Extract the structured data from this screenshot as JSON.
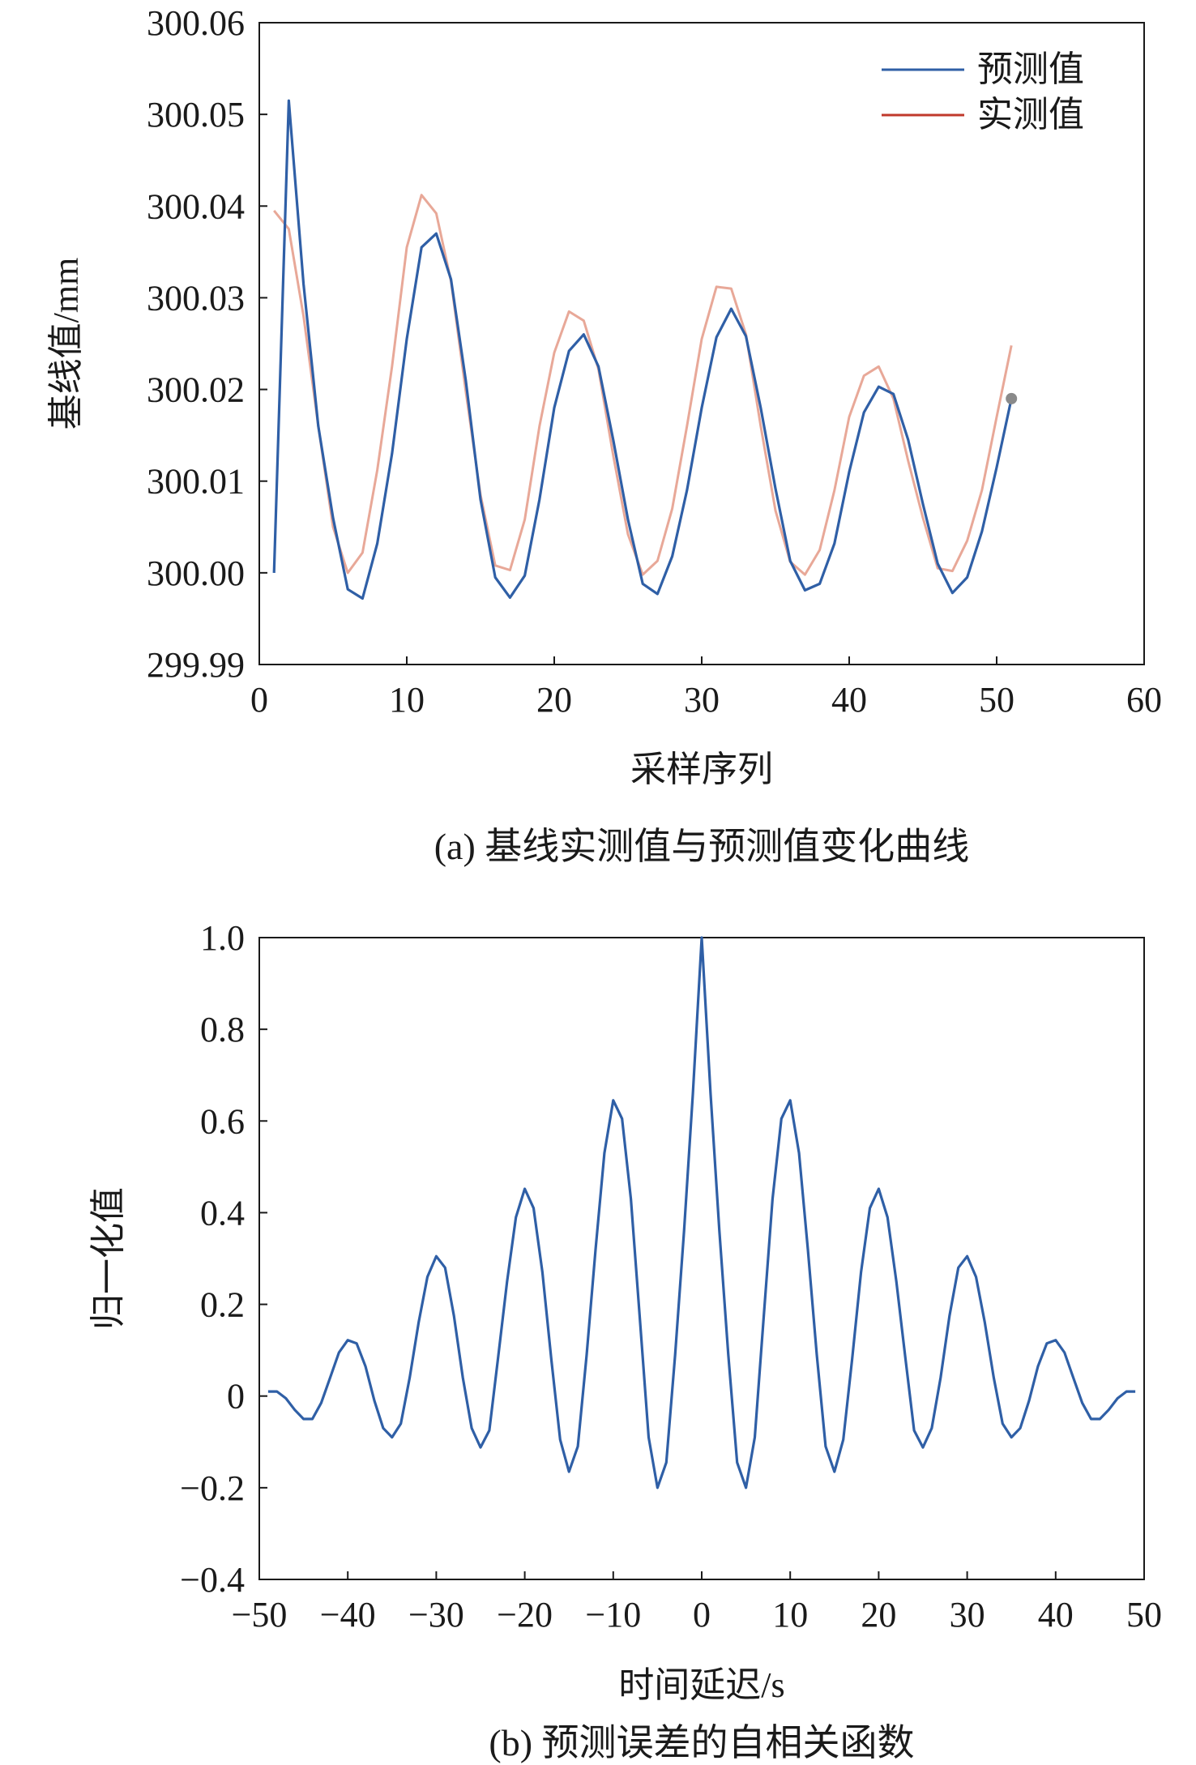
{
  "chart_data": [
    {
      "type": "line",
      "caption": "(a) 基线实测值与预测值变化曲线",
      "xlabel": "采样序列",
      "ylabel": "基线值/mm",
      "xlim": [
        0,
        60
      ],
      "ylim": [
        299.99,
        300.06
      ],
      "xticks": [
        0,
        10,
        20,
        30,
        40,
        50,
        60
      ],
      "yticks": [
        "299.99",
        "300.00",
        "300.01",
        "300.02",
        "300.03",
        "300.04",
        "300.05",
        "300.06"
      ],
      "grid": false,
      "legend": "top-right",
      "x": [
        1,
        2,
        3,
        4,
        5,
        6,
        7,
        8,
        9,
        10,
        11,
        12,
        13,
        14,
        15,
        16,
        17,
        18,
        19,
        20,
        21,
        22,
        23,
        24,
        25,
        26,
        27,
        28,
        29,
        30,
        31,
        32,
        33,
        34,
        35,
        36,
        37,
        38,
        39,
        40,
        41,
        42,
        43,
        44,
        45,
        46,
        47,
        48,
        49,
        50,
        51
      ],
      "series": [
        {
          "name": "预测值",
          "color": "#2f5fa6",
          "values": [
            300.0,
            300.0515,
            300.0315,
            300.016,
            300.006,
            299.9982,
            299.9972,
            300.0032,
            300.013,
            300.0255,
            300.0355,
            300.037,
            300.032,
            300.021,
            300.008,
            299.9995,
            299.9973,
            299.9997,
            300.008,
            300.018,
            300.0242,
            300.026,
            300.0225,
            300.0145,
            300.0058,
            299.9988,
            299.9977,
            300.0018,
            300.009,
            300.018,
            300.0257,
            300.0288,
            300.0258,
            300.018,
            300.0092,
            300.0013,
            299.9981,
            299.9988,
            300.0032,
            300.011,
            300.0175,
            300.0203,
            300.0195,
            300.0145,
            300.0075,
            300.001,
            299.9978,
            299.9995,
            300.0045,
            300.0115,
            300.019
          ]
        },
        {
          "name": "实测值",
          "color": "#e8a898",
          "values": [
            300.0395,
            300.0375,
            300.028,
            300.016,
            300.005,
            300.0,
            300.0022,
            300.0112,
            300.0225,
            300.0355,
            300.0412,
            300.0392,
            300.0318,
            300.0198,
            300.0085,
            300.0008,
            300.0003,
            300.0058,
            300.016,
            300.024,
            300.0285,
            300.0275,
            300.0222,
            300.0128,
            300.0042,
            299.9998,
            300.0013,
            300.007,
            300.016,
            300.0255,
            300.0312,
            300.031,
            300.026,
            300.016,
            300.0068,
            300.0012,
            299.9998,
            300.0025,
            300.009,
            300.017,
            300.0215,
            300.0225,
            300.019,
            300.0122,
            300.006,
            300.0005,
            300.0002,
            300.0035,
            300.009,
            300.017,
            300.0248
          ]
        }
      ]
    },
    {
      "type": "line",
      "caption": "(b) 预测误差的自相关函数",
      "xlabel": "时间延迟/s",
      "ylabel": "归一化值",
      "xlim": [
        -50,
        50
      ],
      "ylim": [
        -0.4,
        1.0
      ],
      "xticks": [
        "−50",
        "−40",
        "−30",
        "−20",
        "−10",
        "0",
        "10",
        "20",
        "30",
        "40",
        "50"
      ],
      "yticks": [
        "−0.4",
        "−0.2",
        "0",
        "0.2",
        "0.4",
        "0.6",
        "0.8",
        "1.0"
      ],
      "grid": false,
      "legend": "none",
      "x": [
        -49,
        -48,
        -47,
        -46,
        -45,
        -44,
        -43,
        -42,
        -41,
        -40,
        -39,
        -38,
        -37,
        -36,
        -35,
        -34,
        -33,
        -32,
        -31,
        -30,
        -29,
        -28,
        -27,
        -26,
        -25,
        -24,
        -23,
        -22,
        -21,
        -20,
        -19,
        -18,
        -17,
        -16,
        -15,
        -14,
        -13,
        -12,
        -11,
        -10,
        -9,
        -8,
        -7,
        -6,
        -5,
        -4,
        -3,
        -2,
        -1,
        0,
        1,
        2,
        3,
        4,
        5,
        6,
        7,
        8,
        9,
        10,
        11,
        12,
        13,
        14,
        15,
        16,
        17,
        18,
        19,
        20,
        21,
        22,
        23,
        24,
        25,
        26,
        27,
        28,
        29,
        30,
        31,
        32,
        33,
        34,
        35,
        36,
        37,
        38,
        39,
        40,
        41,
        42,
        43,
        44,
        45,
        46,
        47,
        48,
        49
      ],
      "series": [
        {
          "color": "#2f5fa6",
          "values": [
            0.01,
            0.01,
            -0.005,
            -0.03,
            -0.05,
            -0.05,
            -0.015,
            0.04,
            0.095,
            0.122,
            0.115,
            0.065,
            -0.01,
            -0.07,
            -0.09,
            -0.06,
            0.04,
            0.16,
            0.26,
            0.305,
            0.28,
            0.175,
            0.04,
            -0.07,
            -0.112,
            -0.075,
            0.085,
            0.25,
            0.39,
            0.452,
            0.41,
            0.27,
            0.08,
            -0.095,
            -0.165,
            -0.11,
            0.09,
            0.32,
            0.53,
            0.645,
            0.605,
            0.43,
            0.17,
            -0.09,
            -0.2,
            -0.145,
            0.09,
            0.36,
            0.66,
            1.0,
            0.66,
            0.36,
            0.09,
            -0.145,
            -0.2,
            -0.09,
            0.17,
            0.43,
            0.605,
            0.645,
            0.53,
            0.32,
            0.09,
            -0.11,
            -0.165,
            -0.095,
            0.08,
            0.27,
            0.41,
            0.452,
            0.39,
            0.25,
            0.085,
            -0.075,
            -0.112,
            -0.07,
            0.04,
            0.175,
            0.28,
            0.305,
            0.26,
            0.16,
            0.04,
            -0.06,
            -0.09,
            -0.07,
            -0.01,
            0.065,
            0.115,
            0.122,
            0.095,
            0.04,
            -0.015,
            -0.05,
            -0.05,
            -0.03,
            -0.005,
            0.01,
            0.01
          ]
        }
      ]
    }
  ]
}
